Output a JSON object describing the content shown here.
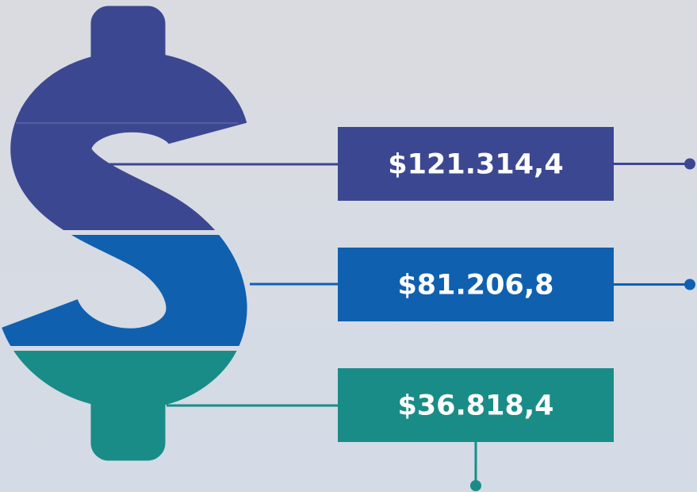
{
  "items": [
    {
      "label": "$121.314,4",
      "color": "#3b4891"
    },
    {
      "label": "$81.206,8",
      "color": "#1060b0"
    },
    {
      "label": "$36.818,4",
      "color": "#1a8c88"
    }
  ]
}
